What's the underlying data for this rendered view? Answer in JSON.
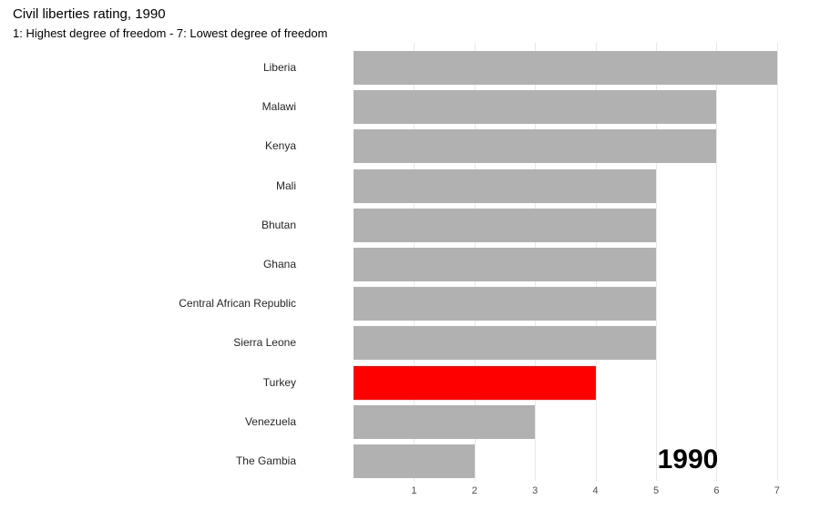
{
  "header": {
    "title": "Civil liberties rating, 1990",
    "subtitle": "1: Highest degree of freedom - 7: Lowest degree of freedom"
  },
  "chart_data": {
    "type": "bar",
    "orientation": "horizontal",
    "title": "Civil liberties rating, 1990",
    "subtitle": "1: Highest degree of freedom - 7: Lowest degree of freedom",
    "categories": [
      "Liberia",
      "Malawi",
      "Kenya",
      "Mali",
      "Bhutan",
      "Ghana",
      "Central African Republic",
      "Sierra Leone",
      "Turkey",
      "Venezuela",
      "The Gambia"
    ],
    "values": [
      7,
      6,
      6,
      5,
      5,
      5,
      5,
      5,
      4,
      3,
      2
    ],
    "highlighted_category": "Turkey",
    "x_ticks": [
      1,
      2,
      3,
      4,
      5,
      6,
      7
    ],
    "xlim": [
      0,
      7.2
    ],
    "grid": true,
    "legend_position": "none",
    "year_label": "1990",
    "colors": {
      "bar": "#B1B1B1",
      "highlight": "#FF0000",
      "gridline": "#E8E8E8",
      "tick_text": "#4D4D4D",
      "label_text": "#262626"
    }
  }
}
